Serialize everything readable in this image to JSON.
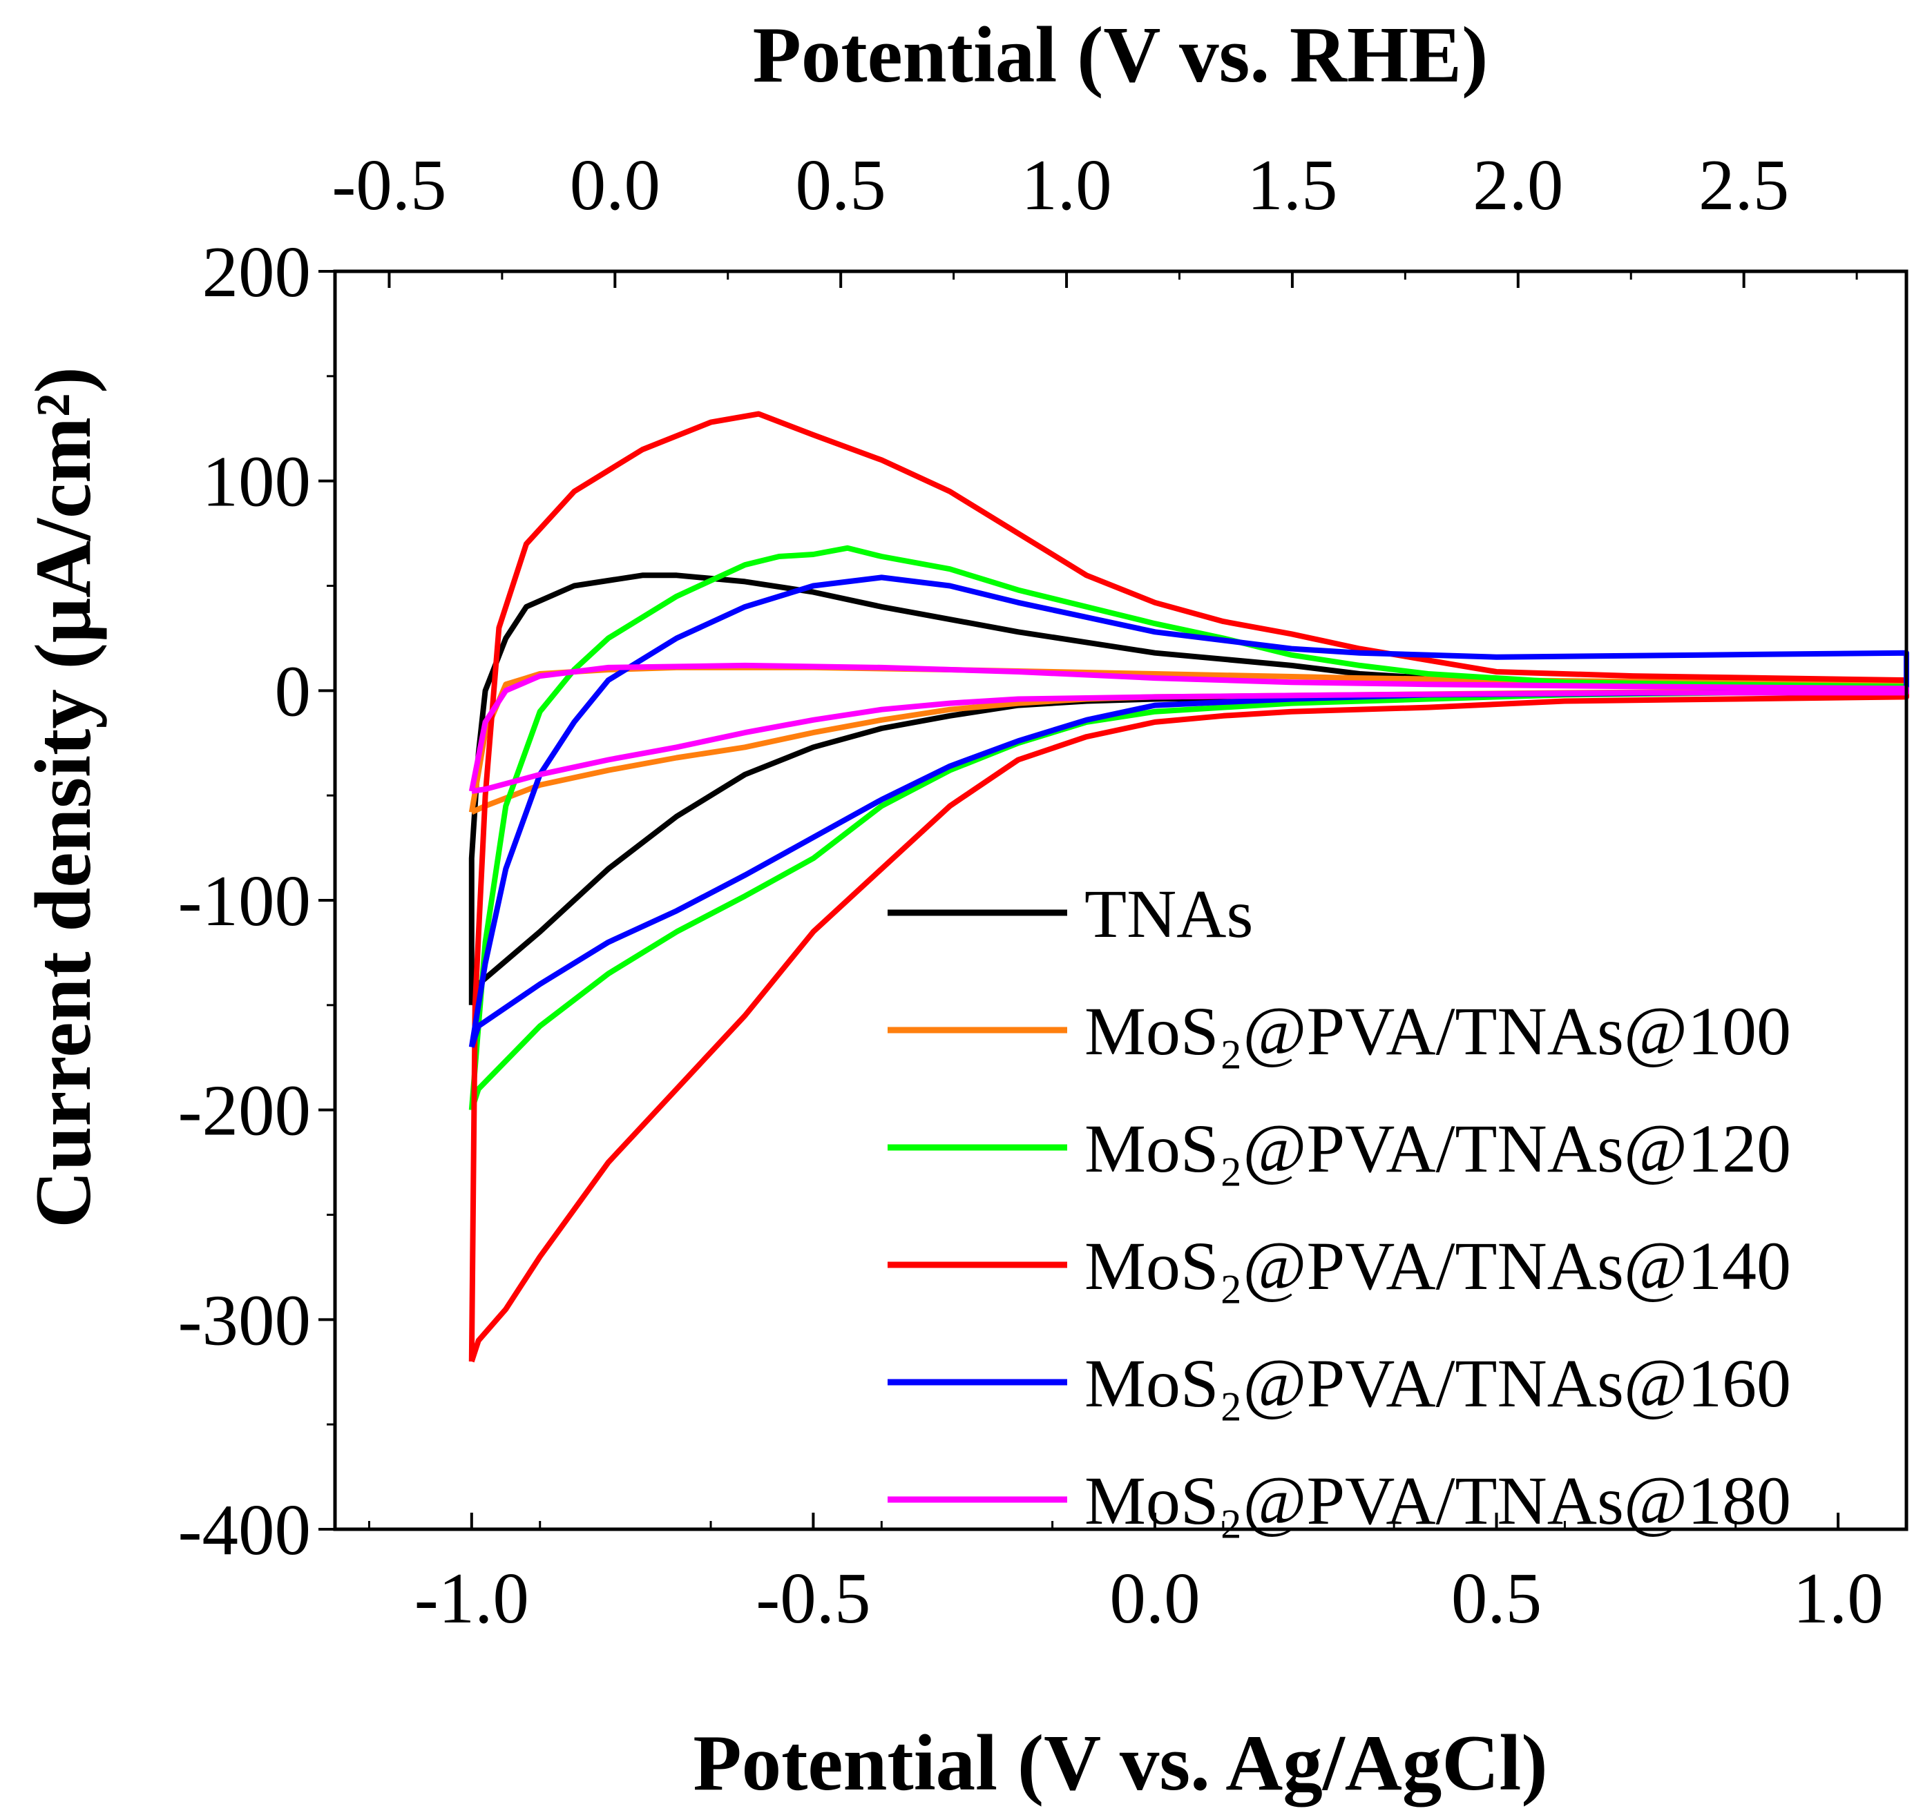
{
  "chart_data": {
    "type": "line",
    "xlabel": "Potential (V vs. Ag/AgCl)",
    "x2label": "Potential (V vs. RHE)",
    "ylabel": "Current density (μA/cm²)",
    "xlim": [
      -1.2,
      1.1
    ],
    "ylim": [
      -400,
      200
    ],
    "x2lim": [
      -0.62,
      2.86
    ],
    "xticks": [
      -1.0,
      -0.5,
      0.0,
      0.5,
      1.0
    ],
    "xtick_labels": [
      "-1.0",
      "-0.5",
      "0.0",
      "0.5",
      "1.0"
    ],
    "x2ticks": [
      -0.5,
      0.0,
      0.5,
      1.0,
      1.5,
      2.0,
      2.5
    ],
    "x2tick_labels": [
      "-0.5",
      "0.0",
      "0.5",
      "1.0",
      "1.5",
      "2.0",
      "2.5"
    ],
    "yticks": [
      200,
      100,
      0,
      -100,
      -200,
      -300,
      -400
    ],
    "ytick_labels": [
      "200",
      "100",
      "0",
      "-100",
      "-200",
      "-300",
      "-400"
    ],
    "grid": false,
    "legend_position": "bottom-right",
    "series": [
      {
        "name": "TNAs",
        "color": "#000000",
        "points": [
          [
            -1.0,
            -150
          ],
          [
            -0.99,
            -140
          ],
          [
            -0.9,
            -115
          ],
          [
            -0.8,
            -85
          ],
          [
            -0.7,
            -60
          ],
          [
            -0.6,
            -40
          ],
          [
            -0.5,
            -27
          ],
          [
            -0.4,
            -18
          ],
          [
            -0.3,
            -12
          ],
          [
            -0.2,
            -7
          ],
          [
            -0.1,
            -5
          ],
          [
            0.0,
            -4
          ],
          [
            0.2,
            -3
          ],
          [
            0.5,
            -2
          ],
          [
            0.8,
            -1
          ],
          [
            1.1,
            -1
          ],
          [
            1.1,
            2
          ],
          [
            0.8,
            3
          ],
          [
            0.5,
            4
          ],
          [
            0.3,
            8
          ],
          [
            0.2,
            12
          ],
          [
            0.0,
            18
          ],
          [
            -0.2,
            28
          ],
          [
            -0.4,
            40
          ],
          [
            -0.5,
            47
          ],
          [
            -0.6,
            52
          ],
          [
            -0.7,
            55
          ],
          [
            -0.75,
            55
          ],
          [
            -0.85,
            50
          ],
          [
            -0.92,
            40
          ],
          [
            -0.95,
            25
          ],
          [
            -0.98,
            0
          ],
          [
            -0.99,
            -30
          ],
          [
            -1.0,
            -80
          ],
          [
            -1.0,
            -150
          ]
        ]
      },
      {
        "name": "MoS₂@PVA/TNAs@100",
        "color": "#ff7f0e",
        "points": [
          [
            -1.0,
            -58
          ],
          [
            -0.98,
            -55
          ],
          [
            -0.9,
            -45
          ],
          [
            -0.8,
            -38
          ],
          [
            -0.7,
            -32
          ],
          [
            -0.6,
            -27
          ],
          [
            -0.5,
            -20
          ],
          [
            -0.4,
            -14
          ],
          [
            -0.3,
            -9
          ],
          [
            -0.2,
            -6
          ],
          [
            -0.1,
            -4
          ],
          [
            0.0,
            -3
          ],
          [
            0.3,
            -2
          ],
          [
            0.6,
            -1
          ],
          [
            1.1,
            0
          ],
          [
            1.1,
            3
          ],
          [
            0.8,
            4
          ],
          [
            0.5,
            5
          ],
          [
            0.3,
            6
          ],
          [
            0.0,
            8
          ],
          [
            -0.3,
            10
          ],
          [
            -0.5,
            11
          ],
          [
            -0.7,
            11
          ],
          [
            -0.8,
            10
          ],
          [
            -0.9,
            8
          ],
          [
            -0.95,
            3
          ],
          [
            -0.98,
            -20
          ],
          [
            -1.0,
            -58
          ]
        ]
      },
      {
        "name": "MoS₂@PVA/TNAs@120",
        "color": "#00ff00",
        "points": [
          [
            -1.0,
            -200
          ],
          [
            -0.99,
            -190
          ],
          [
            -0.9,
            -160
          ],
          [
            -0.8,
            -135
          ],
          [
            -0.7,
            -115
          ],
          [
            -0.6,
            -98
          ],
          [
            -0.5,
            -80
          ],
          [
            -0.4,
            -55
          ],
          [
            -0.3,
            -38
          ],
          [
            -0.2,
            -25
          ],
          [
            -0.1,
            -15
          ],
          [
            0.0,
            -10
          ],
          [
            0.2,
            -6
          ],
          [
            0.4,
            -4
          ],
          [
            0.6,
            -2
          ],
          [
            1.1,
            0
          ],
          [
            1.1,
            2
          ],
          [
            0.8,
            3
          ],
          [
            0.6,
            4
          ],
          [
            0.4,
            8
          ],
          [
            0.3,
            12
          ],
          [
            0.2,
            17
          ],
          [
            0.1,
            25
          ],
          [
            0.0,
            32
          ],
          [
            -0.1,
            40
          ],
          [
            -0.2,
            48
          ],
          [
            -0.3,
            58
          ],
          [
            -0.4,
            64
          ],
          [
            -0.45,
            68
          ],
          [
            -0.5,
            65
          ],
          [
            -0.55,
            64
          ],
          [
            -0.6,
            60
          ],
          [
            -0.7,
            45
          ],
          [
            -0.8,
            25
          ],
          [
            -0.85,
            10
          ],
          [
            -0.9,
            -10
          ],
          [
            -0.95,
            -55
          ],
          [
            -0.98,
            -120
          ],
          [
            -1.0,
            -200
          ]
        ]
      },
      {
        "name": "MoS₂@PVA/TNAs@140",
        "color": "#ff0000",
        "points": [
          [
            -1.0,
            -320
          ],
          [
            -0.99,
            -310
          ],
          [
            -0.95,
            -295
          ],
          [
            -0.9,
            -270
          ],
          [
            -0.8,
            -225
          ],
          [
            -0.7,
            -190
          ],
          [
            -0.6,
            -155
          ],
          [
            -0.5,
            -115
          ],
          [
            -0.4,
            -85
          ],
          [
            -0.3,
            -55
          ],
          [
            -0.2,
            -33
          ],
          [
            -0.1,
            -22
          ],
          [
            0.0,
            -15
          ],
          [
            0.1,
            -12
          ],
          [
            0.2,
            -10
          ],
          [
            0.4,
            -8
          ],
          [
            0.6,
            -5
          ],
          [
            1.1,
            -3
          ],
          [
            1.1,
            5
          ],
          [
            0.9,
            6
          ],
          [
            0.7,
            7
          ],
          [
            0.5,
            9
          ],
          [
            0.3,
            20
          ],
          [
            0.2,
            27
          ],
          [
            0.1,
            33
          ],
          [
            0.0,
            42
          ],
          [
            -0.1,
            55
          ],
          [
            -0.2,
            75
          ],
          [
            -0.3,
            95
          ],
          [
            -0.4,
            110
          ],
          [
            -0.5,
            122
          ],
          [
            -0.58,
            132
          ],
          [
            -0.65,
            128
          ],
          [
            -0.75,
            115
          ],
          [
            -0.85,
            95
          ],
          [
            -0.92,
            70
          ],
          [
            -0.96,
            30
          ],
          [
            -0.98,
            -50
          ],
          [
            -0.995,
            -150
          ],
          [
            -1.0,
            -320
          ]
        ]
      },
      {
        "name": "MoS₂@PVA/TNAs@160",
        "color": "#0000ff",
        "points": [
          [
            -1.0,
            -170
          ],
          [
            -0.99,
            -160
          ],
          [
            -0.9,
            -140
          ],
          [
            -0.8,
            -120
          ],
          [
            -0.7,
            -105
          ],
          [
            -0.6,
            -88
          ],
          [
            -0.5,
            -70
          ],
          [
            -0.4,
            -52
          ],
          [
            -0.3,
            -36
          ],
          [
            -0.2,
            -24
          ],
          [
            -0.1,
            -14
          ],
          [
            0.0,
            -7
          ],
          [
            0.2,
            -4
          ],
          [
            0.4,
            -2
          ],
          [
            0.8,
            -1
          ],
          [
            1.1,
            0
          ],
          [
            1.1,
            18
          ],
          [
            0.8,
            17
          ],
          [
            0.5,
            16
          ],
          [
            0.3,
            18
          ],
          [
            0.2,
            20
          ],
          [
            0.0,
            28
          ],
          [
            -0.1,
            35
          ],
          [
            -0.2,
            42
          ],
          [
            -0.3,
            50
          ],
          [
            -0.4,
            54
          ],
          [
            -0.5,
            50
          ],
          [
            -0.6,
            40
          ],
          [
            -0.7,
            25
          ],
          [
            -0.8,
            5
          ],
          [
            -0.85,
            -15
          ],
          [
            -0.9,
            -40
          ],
          [
            -0.95,
            -85
          ],
          [
            -0.98,
            -130
          ],
          [
            -1.0,
            -170
          ]
        ]
      },
      {
        "name": "MoS₂@PVA/TNAs@180",
        "color": "#ff00ff",
        "points": [
          [
            -1.0,
            -48
          ],
          [
            -0.98,
            -47
          ],
          [
            -0.9,
            -40
          ],
          [
            -0.8,
            -33
          ],
          [
            -0.7,
            -27
          ],
          [
            -0.6,
            -20
          ],
          [
            -0.5,
            -14
          ],
          [
            -0.4,
            -9
          ],
          [
            -0.3,
            -6
          ],
          [
            -0.2,
            -4
          ],
          [
            0.0,
            -3
          ],
          [
            0.3,
            -2
          ],
          [
            0.7,
            -1
          ],
          [
            1.1,
            -1
          ],
          [
            1.1,
            1
          ],
          [
            0.7,
            2
          ],
          [
            0.4,
            3
          ],
          [
            0.2,
            4
          ],
          [
            0.0,
            6
          ],
          [
            -0.2,
            9
          ],
          [
            -0.4,
            11
          ],
          [
            -0.6,
            12
          ],
          [
            -0.8,
            11
          ],
          [
            -0.9,
            7
          ],
          [
            -0.95,
            0
          ],
          [
            -0.98,
            -15
          ],
          [
            -1.0,
            -48
          ]
        ]
      }
    ]
  }
}
